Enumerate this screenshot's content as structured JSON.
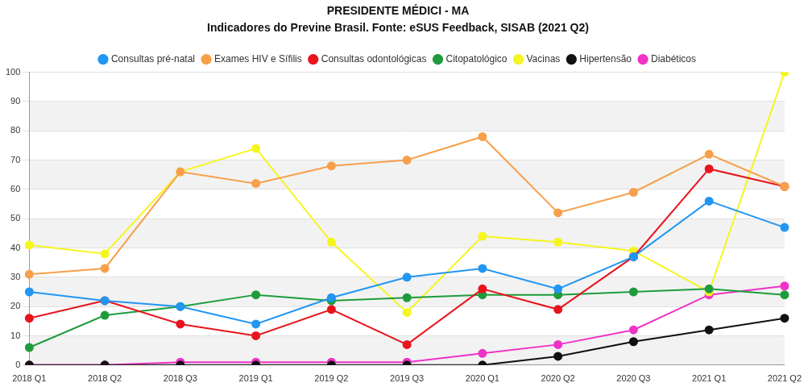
{
  "chart_data": {
    "type": "line",
    "title": "PRESIDENTE MÉDICI - MA",
    "subtitle": "Indicadores do Previne Brasil. Fonte: eSUS Feedback, SISAB (2021 Q2)",
    "categories": [
      "2018 Q1",
      "2018 Q2",
      "2018 Q3",
      "2019 Q1",
      "2019 Q2",
      "2019 Q3",
      "2020 Q1",
      "2020 Q2",
      "2020 Q3",
      "2021 Q1",
      "2021 Q2"
    ],
    "series": [
      {
        "name": "Consultas pré-natal",
        "color": "#2196f3",
        "marker": "circle",
        "line_style": "solid",
        "values": [
          25,
          22,
          20,
          14,
          23,
          30,
          33,
          26,
          37,
          56,
          47
        ]
      },
      {
        "name": "Exames HIV e Sífilis",
        "color": "#f7a04b",
        "marker": "circle",
        "line_style": "solid",
        "values": [
          31,
          33,
          66,
          62,
          68,
          70,
          78,
          52,
          59,
          72,
          61
        ]
      },
      {
        "name": "Consultas odontológicas",
        "color": "#e8141c",
        "marker": "circle",
        "line_style": "solid",
        "values": [
          16,
          22,
          14,
          10,
          19,
          7,
          26,
          19,
          37,
          67,
          61
        ]
      },
      {
        "name": "Citopatológico",
        "color": "#1e9c3c",
        "marker": "circle",
        "line_style": "solid",
        "values": [
          6,
          17,
          20,
          24,
          22,
          23,
          24,
          24,
          25,
          26,
          24
        ]
      },
      {
        "name": "Vacinas",
        "color": "#f5f520",
        "marker": "circle",
        "line_style": "solid",
        "values": [
          41,
          38,
          66,
          74,
          42,
          18,
          44,
          42,
          39,
          25,
          100
        ]
      },
      {
        "name": "Hipertensão",
        "color": "#111111",
        "marker": "circle",
        "line_style": "solid",
        "values": [
          0,
          0,
          0,
          0,
          0,
          0,
          0,
          3,
          8,
          12,
          16
        ]
      },
      {
        "name": "Diabéticos",
        "color": "#f032c8",
        "marker": "circle",
        "line_style": "solid",
        "values": [
          0,
          0,
          1,
          1,
          1,
          1,
          4,
          7,
          12,
          24,
          27
        ]
      }
    ],
    "ylim": [
      0,
      100
    ],
    "yticks": [
      0,
      10,
      20,
      30,
      40,
      50,
      60,
      70,
      80,
      90,
      100
    ],
    "grid": true,
    "legend": "top"
  }
}
